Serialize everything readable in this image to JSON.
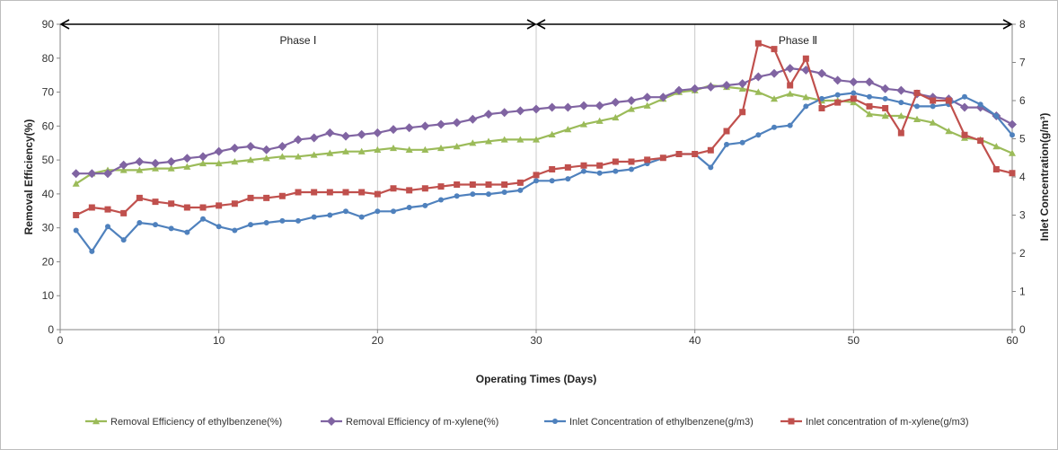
{
  "chart_data": {
    "type": "line",
    "xlabel": "Operating Times (Days)",
    "ylabel": "Removal Efficiency(%)",
    "y2label": "Inlet Concentration(g/m³)",
    "xlim": [
      0,
      60
    ],
    "ylim": [
      0,
      90
    ],
    "y2lim": [
      0,
      8
    ],
    "x_ticks": [
      0,
      10,
      20,
      30,
      40,
      50,
      60
    ],
    "y_ticks": [
      0,
      10,
      20,
      30,
      40,
      50,
      60,
      70,
      80,
      90
    ],
    "y2_ticks": [
      0,
      1,
      2,
      3,
      4,
      5,
      6,
      7,
      8
    ],
    "grid": "vertical",
    "legend_position": "bottom",
    "phases": [
      {
        "label": "Phase Ⅰ",
        "start": 0,
        "end": 30
      },
      {
        "label": "Phase Ⅱ",
        "start": 30,
        "end": 60
      }
    ],
    "series": [
      {
        "name": "Removal Efficiency of ethylbenzene(%)",
        "axis": "left",
        "color": "#9bbb59",
        "marker": "triangle",
        "points": [
          [
            1,
            43
          ],
          [
            2,
            46
          ],
          [
            3,
            47
          ],
          [
            4,
            47
          ],
          [
            5,
            47
          ],
          [
            6,
            47.5
          ],
          [
            7,
            47.5
          ],
          [
            8,
            48
          ],
          [
            9,
            49
          ],
          [
            10,
            49
          ],
          [
            11,
            49.5
          ],
          [
            12,
            50
          ],
          [
            13,
            50.5
          ],
          [
            14,
            51
          ],
          [
            15,
            51
          ],
          [
            16,
            51.5
          ],
          [
            17,
            52
          ],
          [
            18,
            52.5
          ],
          [
            19,
            52.5
          ],
          [
            20,
            53
          ],
          [
            21,
            53.5
          ],
          [
            22,
            53
          ],
          [
            23,
            53
          ],
          [
            24,
            53.5
          ],
          [
            25,
            54
          ],
          [
            26,
            55
          ],
          [
            27,
            55.5
          ],
          [
            28,
            56
          ],
          [
            29,
            56
          ],
          [
            30,
            56
          ],
          [
            31,
            57.5
          ],
          [
            32,
            59
          ],
          [
            33,
            60.5
          ],
          [
            34,
            61.5
          ],
          [
            35,
            62.5
          ],
          [
            36,
            65
          ],
          [
            37,
            66
          ],
          [
            38,
            68
          ],
          [
            39,
            70
          ],
          [
            40,
            70.5
          ],
          [
            41,
            72
          ],
          [
            42,
            71.5
          ],
          [
            43,
            71
          ],
          [
            44,
            70
          ],
          [
            45,
            68
          ],
          [
            46,
            69.5
          ],
          [
            47,
            68.5
          ],
          [
            48,
            67.5
          ],
          [
            49,
            67.5
          ],
          [
            50,
            67
          ],
          [
            51,
            63.5
          ],
          [
            52,
            63
          ],
          [
            53,
            63
          ],
          [
            54,
            62
          ],
          [
            55,
            61
          ],
          [
            56,
            58.5
          ],
          [
            57,
            56.5
          ],
          [
            58,
            56
          ],
          [
            59,
            54
          ],
          [
            60,
            52
          ]
        ]
      },
      {
        "name": "Removal Efficiency of m-xylene(%)",
        "axis": "left",
        "color": "#8064a2",
        "marker": "diamond",
        "points": [
          [
            1,
            46
          ],
          [
            2,
            46
          ],
          [
            3,
            46
          ],
          [
            4,
            48.5
          ],
          [
            5,
            49.5
          ],
          [
            6,
            49
          ],
          [
            7,
            49.5
          ],
          [
            8,
            50.5
          ],
          [
            9,
            51
          ],
          [
            10,
            52.5
          ],
          [
            11,
            53.5
          ],
          [
            12,
            54
          ],
          [
            13,
            53
          ],
          [
            14,
            54
          ],
          [
            15,
            56
          ],
          [
            16,
            56.5
          ],
          [
            17,
            58
          ],
          [
            18,
            57
          ],
          [
            19,
            57.5
          ],
          [
            20,
            58
          ],
          [
            21,
            59
          ],
          [
            22,
            59.5
          ],
          [
            23,
            60
          ],
          [
            24,
            60.5
          ],
          [
            25,
            61
          ],
          [
            26,
            62
          ],
          [
            27,
            63.5
          ],
          [
            28,
            64
          ],
          [
            29,
            64.5
          ],
          [
            30,
            65
          ],
          [
            31,
            65.5
          ],
          [
            32,
            65.5
          ],
          [
            33,
            66
          ],
          [
            34,
            66
          ],
          [
            35,
            67
          ],
          [
            36,
            67.5
          ],
          [
            37,
            68.5
          ],
          [
            38,
            68.5
          ],
          [
            39,
            70.5
          ],
          [
            40,
            71
          ],
          [
            41,
            71.5
          ],
          [
            42,
            72
          ],
          [
            43,
            72.5
          ],
          [
            44,
            74.5
          ],
          [
            45,
            75.5
          ],
          [
            46,
            77
          ],
          [
            47,
            76.5
          ],
          [
            48,
            75.5
          ],
          [
            49,
            73.5
          ],
          [
            50,
            73
          ],
          [
            51,
            73
          ],
          [
            52,
            71
          ],
          [
            53,
            70.5
          ],
          [
            54,
            69.5
          ],
          [
            55,
            68.5
          ],
          [
            56,
            68
          ],
          [
            57,
            65.5
          ],
          [
            58,
            65.5
          ],
          [
            59,
            63
          ],
          [
            60,
            60.5
          ]
        ]
      },
      {
        "name": "Inlet Concentration  of ethylbenzene(g/m3)",
        "axis": "right",
        "color": "#4f81bd",
        "marker": "circle",
        "points": [
          [
            1,
            2.6
          ],
          [
            2,
            2.05
          ],
          [
            3,
            2.7
          ],
          [
            4,
            2.35
          ],
          [
            5,
            2.8
          ],
          [
            6,
            2.75
          ],
          [
            7,
            2.65
          ],
          [
            8,
            2.55
          ],
          [
            9,
            2.9
          ],
          [
            10,
            2.7
          ],
          [
            11,
            2.6
          ],
          [
            12,
            2.75
          ],
          [
            13,
            2.8
          ],
          [
            14,
            2.85
          ],
          [
            15,
            2.85
          ],
          [
            16,
            2.95
          ],
          [
            17,
            3.0
          ],
          [
            18,
            3.1
          ],
          [
            19,
            2.95
          ],
          [
            20,
            3.1
          ],
          [
            21,
            3.1
          ],
          [
            22,
            3.2
          ],
          [
            23,
            3.25
          ],
          [
            24,
            3.4
          ],
          [
            25,
            3.5
          ],
          [
            26,
            3.55
          ],
          [
            27,
            3.55
          ],
          [
            28,
            3.6
          ],
          [
            29,
            3.65
          ],
          [
            30,
            3.9
          ],
          [
            31,
            3.9
          ],
          [
            32,
            3.95
          ],
          [
            33,
            4.15
          ],
          [
            34,
            4.1
          ],
          [
            35,
            4.15
          ],
          [
            36,
            4.2
          ],
          [
            37,
            4.35
          ],
          [
            38,
            4.5
          ],
          [
            39,
            4.6
          ],
          [
            40,
            4.6
          ],
          [
            41,
            4.25
          ],
          [
            42,
            4.85
          ],
          [
            43,
            4.9
          ],
          [
            44,
            5.1
          ],
          [
            45,
            5.3
          ],
          [
            46,
            5.35
          ],
          [
            47,
            5.85
          ],
          [
            48,
            6.05
          ],
          [
            49,
            6.15
          ],
          [
            50,
            6.2
          ],
          [
            51,
            6.1
          ],
          [
            52,
            6.05
          ],
          [
            53,
            5.95
          ],
          [
            54,
            5.85
          ],
          [
            55,
            5.85
          ],
          [
            56,
            5.9
          ],
          [
            57,
            6.1
          ],
          [
            58,
            5.9
          ],
          [
            59,
            5.6
          ],
          [
            60,
            5.1
          ]
        ]
      },
      {
        "name": "Inlet concentration of m-xylene(g/m3)",
        "axis": "right",
        "color": "#c0504d",
        "marker": "square",
        "points": [
          [
            1,
            3.0
          ],
          [
            2,
            3.2
          ],
          [
            3,
            3.15
          ],
          [
            4,
            3.05
          ],
          [
            5,
            3.45
          ],
          [
            6,
            3.35
          ],
          [
            7,
            3.3
          ],
          [
            8,
            3.2
          ],
          [
            9,
            3.2
          ],
          [
            10,
            3.25
          ],
          [
            11,
            3.3
          ],
          [
            12,
            3.45
          ],
          [
            13,
            3.45
          ],
          [
            14,
            3.5
          ],
          [
            15,
            3.6
          ],
          [
            16,
            3.6
          ],
          [
            17,
            3.6
          ],
          [
            18,
            3.6
          ],
          [
            19,
            3.6
          ],
          [
            20,
            3.55
          ],
          [
            21,
            3.7
          ],
          [
            22,
            3.65
          ],
          [
            23,
            3.7
          ],
          [
            24,
            3.75
          ],
          [
            25,
            3.8
          ],
          [
            26,
            3.8
          ],
          [
            27,
            3.8
          ],
          [
            28,
            3.8
          ],
          [
            29,
            3.85
          ],
          [
            30,
            4.05
          ],
          [
            31,
            4.2
          ],
          [
            32,
            4.25
          ],
          [
            33,
            4.3
          ],
          [
            34,
            4.3
          ],
          [
            35,
            4.4
          ],
          [
            36,
            4.4
          ],
          [
            37,
            4.45
          ],
          [
            38,
            4.5
          ],
          [
            39,
            4.6
          ],
          [
            40,
            4.6
          ],
          [
            41,
            4.7
          ],
          [
            42,
            5.2
          ],
          [
            43,
            5.7
          ],
          [
            44,
            7.5
          ],
          [
            45,
            7.35
          ],
          [
            46,
            6.4
          ],
          [
            47,
            7.1
          ],
          [
            48,
            5.8
          ],
          [
            49,
            5.95
          ],
          [
            50,
            6.05
          ],
          [
            51,
            5.85
          ],
          [
            52,
            5.8
          ],
          [
            53,
            5.15
          ],
          [
            54,
            6.2
          ],
          [
            55,
            6.0
          ],
          [
            56,
            6.0
          ],
          [
            57,
            5.1
          ],
          [
            58,
            4.95
          ],
          [
            59,
            4.2
          ],
          [
            60,
            4.1
          ]
        ]
      }
    ]
  }
}
